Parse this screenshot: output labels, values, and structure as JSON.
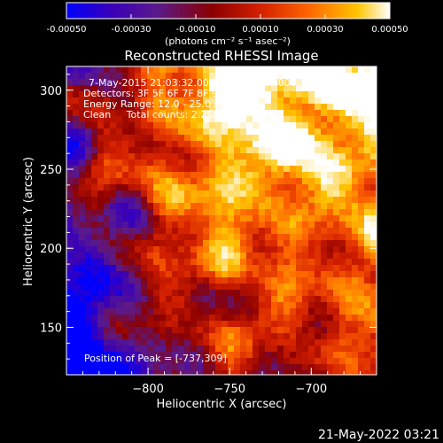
{
  "chart_data": {
    "type": "heatmap",
    "title": "Reconstructed RHESSI Image",
    "xlabel": "Heliocentric X (arcsec)",
    "ylabel": "Heliocentric Y (arcsec)",
    "xlim": [
      -850,
      -660
    ],
    "ylim": [
      120,
      315
    ],
    "x_ticks": [
      -800,
      -750,
      -700
    ],
    "y_ticks": [
      150,
      200,
      250,
      300
    ],
    "colorbar": {
      "min": -0.0005,
      "max": 0.0005,
      "ticks": [
        "-0.00050",
        "-0.00030",
        "-0.00010",
        "0.00010",
        "0.00030",
        "0.00050"
      ],
      "tick_values": [
        -0.0005,
        -0.0003,
        -0.0001,
        0.0001,
        0.0003,
        0.0005
      ],
      "unit_label": "(photons cm⁻² s⁻¹ asec⁻²)",
      "colors": [
        "#0000ff",
        "#3a00b8",
        "#5a1a8c",
        "#8b0000",
        "#d42000",
        "#ff6600",
        "#ffc400",
        "#ffffff"
      ]
    },
    "annotations": [
      "7-May-2015 21:03:32.000 to 21:05:20.000",
      "Detectors: 3F 5F 6F 7F 8F 9F, Att 0",
      "Energy Range: 12.0 - 25.0 keV",
      "Clean     Total counts: 2.25E+03"
    ],
    "peak_label": "Position of Peak = [-737,309]",
    "peak": [
      -737,
      309
    ]
  },
  "footer": {
    "timestamp": "21-May-2022 03:21"
  }
}
